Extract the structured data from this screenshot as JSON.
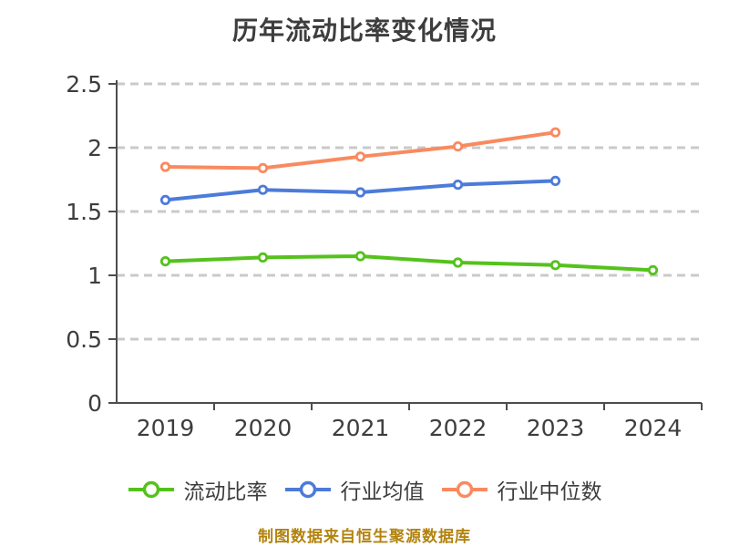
{
  "chart_data": {
    "type": "line",
    "title": "历年流动比率变化情况",
    "categories": [
      "2019",
      "2020",
      "2021",
      "2022",
      "2023",
      "2024"
    ],
    "series": [
      {
        "name": "流动比率",
        "key": "current-ratio",
        "color": "#54c21c",
        "values": [
          1.11,
          1.14,
          1.15,
          1.1,
          1.08,
          1.04
        ]
      },
      {
        "name": "行业均值",
        "key": "industry-average",
        "color": "#4c7bd9",
        "values": [
          1.59,
          1.67,
          1.65,
          1.71,
          1.74,
          null
        ]
      },
      {
        "name": "行业中位数",
        "key": "industry-median",
        "color": "#f98a5f",
        "values": [
          1.85,
          1.84,
          1.93,
          2.01,
          2.12,
          null
        ]
      }
    ],
    "xlabel": "",
    "ylabel": "",
    "ylim": [
      0,
      2.5
    ],
    "ytick_interval": 0.5,
    "yticks": [
      "0",
      "0.5",
      "1",
      "1.5",
      "2",
      "2.5"
    ],
    "grid": "horizontal-dashed",
    "legend_position": "bottom",
    "marker_style": "open-circle"
  },
  "source_note": "制图数据来自恒生聚源数据库",
  "colors": {
    "title_text": "#3d3d3d",
    "axis_text": "#3d3d3d",
    "axis_line": "#4d4d4d",
    "grid_line": "#cacaca",
    "source_note_text": "#b3830f",
    "background": "#ffffff"
  }
}
